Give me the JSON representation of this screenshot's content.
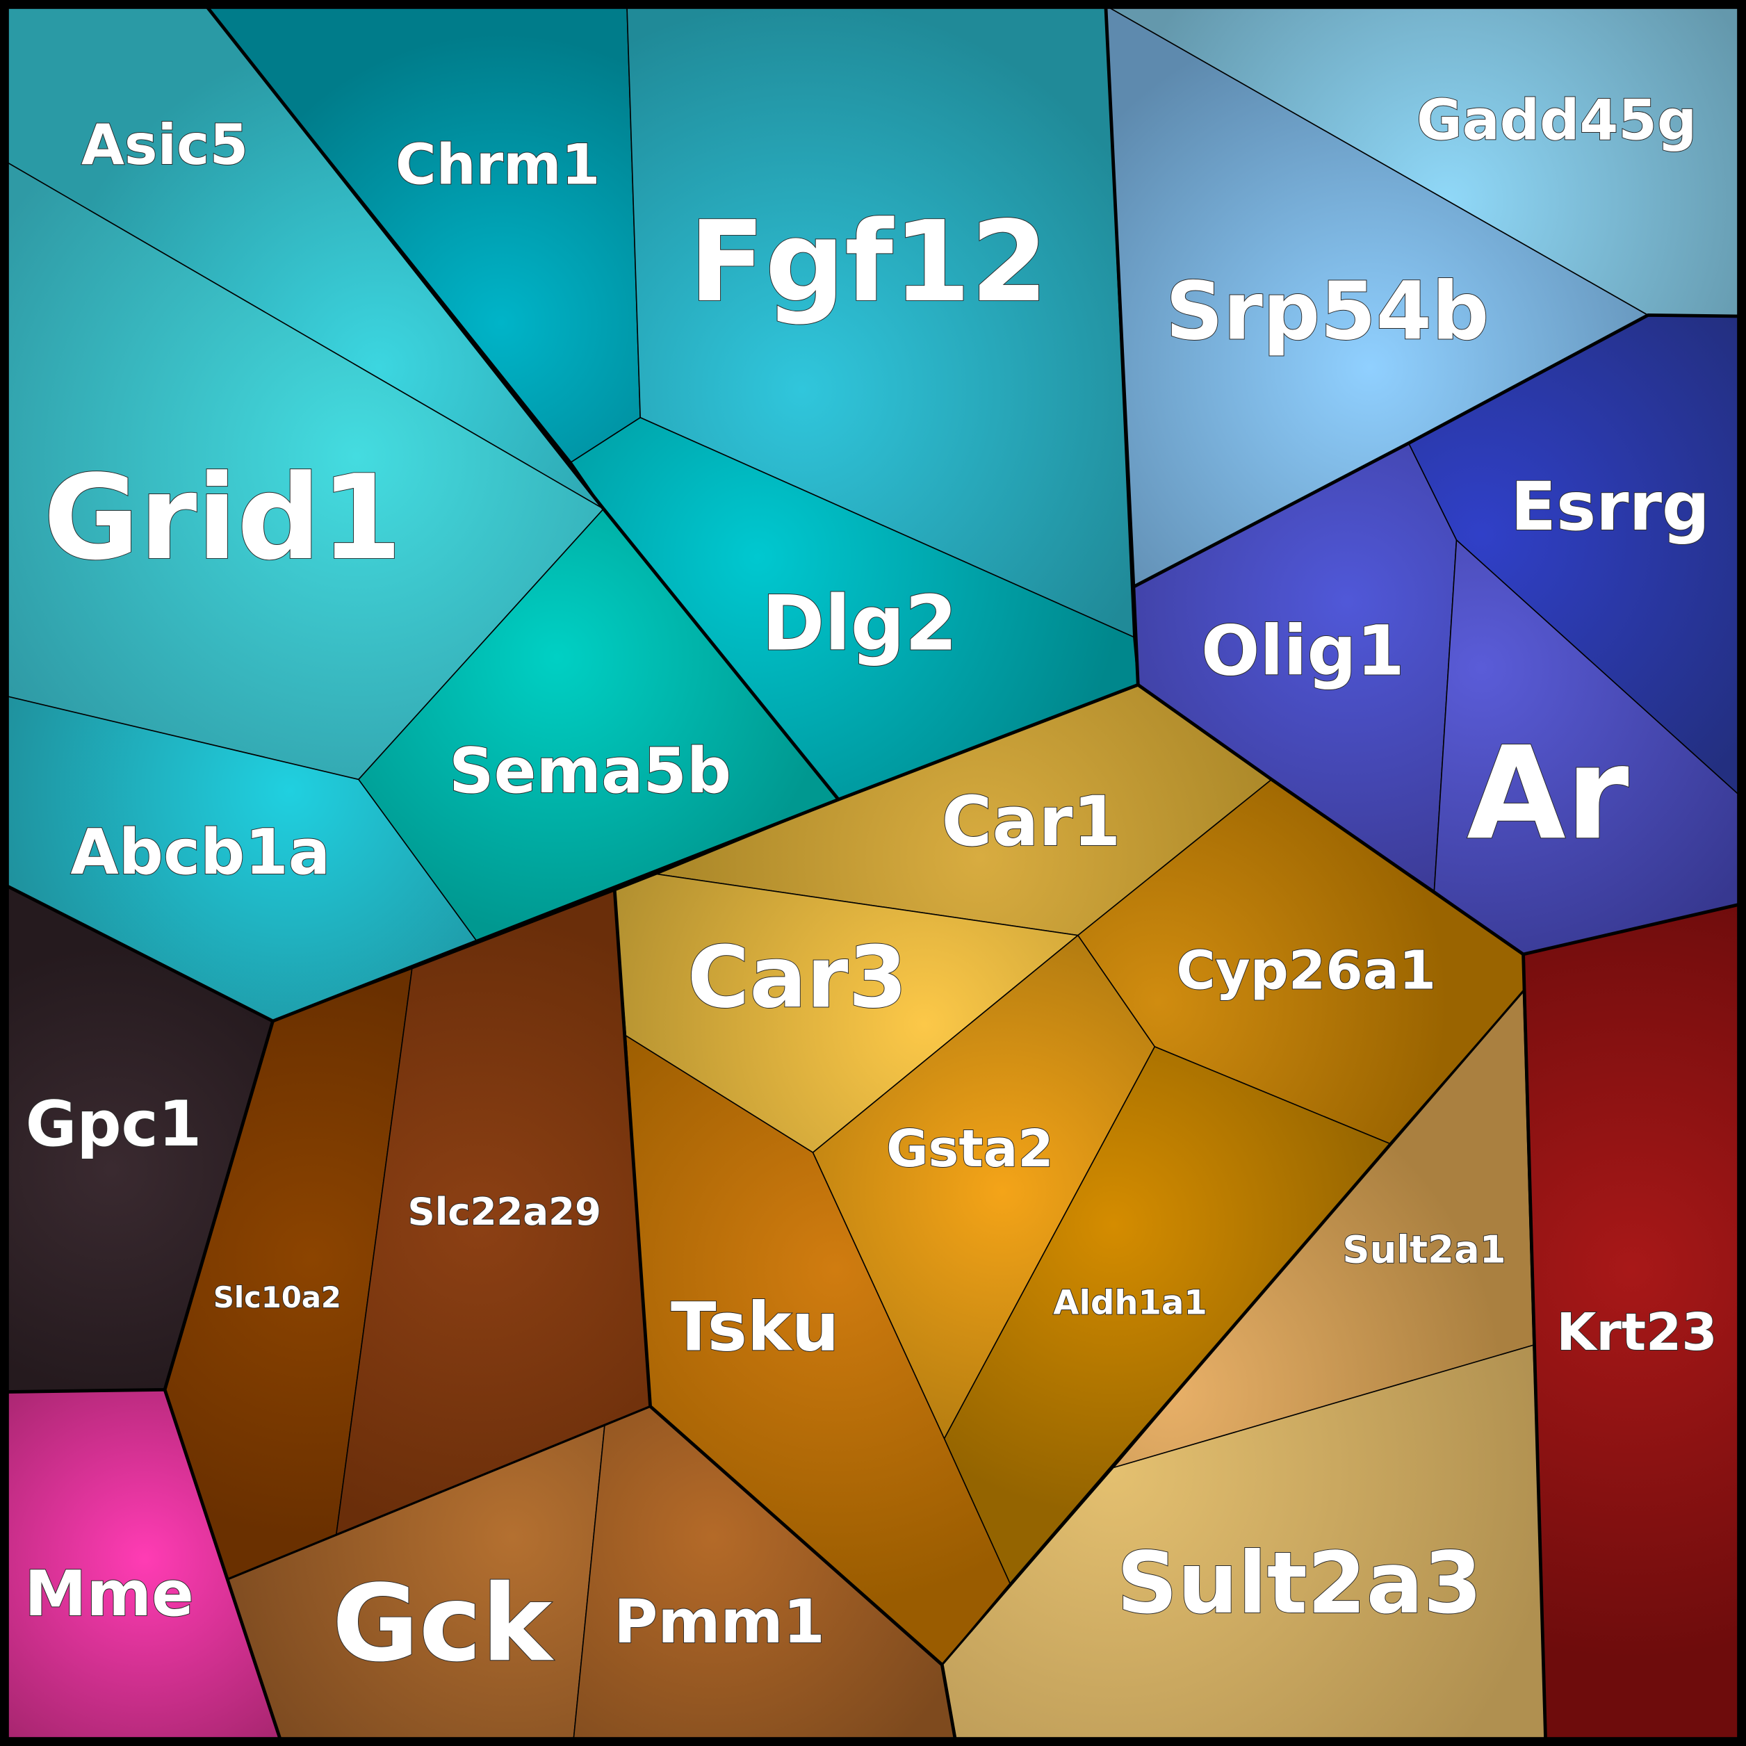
{
  "cells": [
    "Asic5",
    "Chrm1",
    "Fgf12",
    "Grid1",
    "Dlg2",
    "Sema5b",
    "Abcb1a",
    "Gpc1",
    "Mme",
    "Srp54b",
    "Gadd45g",
    "Esrrg",
    "Olig1",
    "Ar",
    "Krt23",
    "Car1",
    "Car3",
    "Cyp26a1",
    "Gsta2",
    "Aldh1a1",
    "Tsku",
    "Sult2a1",
    "Sult2a3",
    "Slc10a2",
    "Slc22a29",
    "Gck",
    "Pmm1"
  ]
}
